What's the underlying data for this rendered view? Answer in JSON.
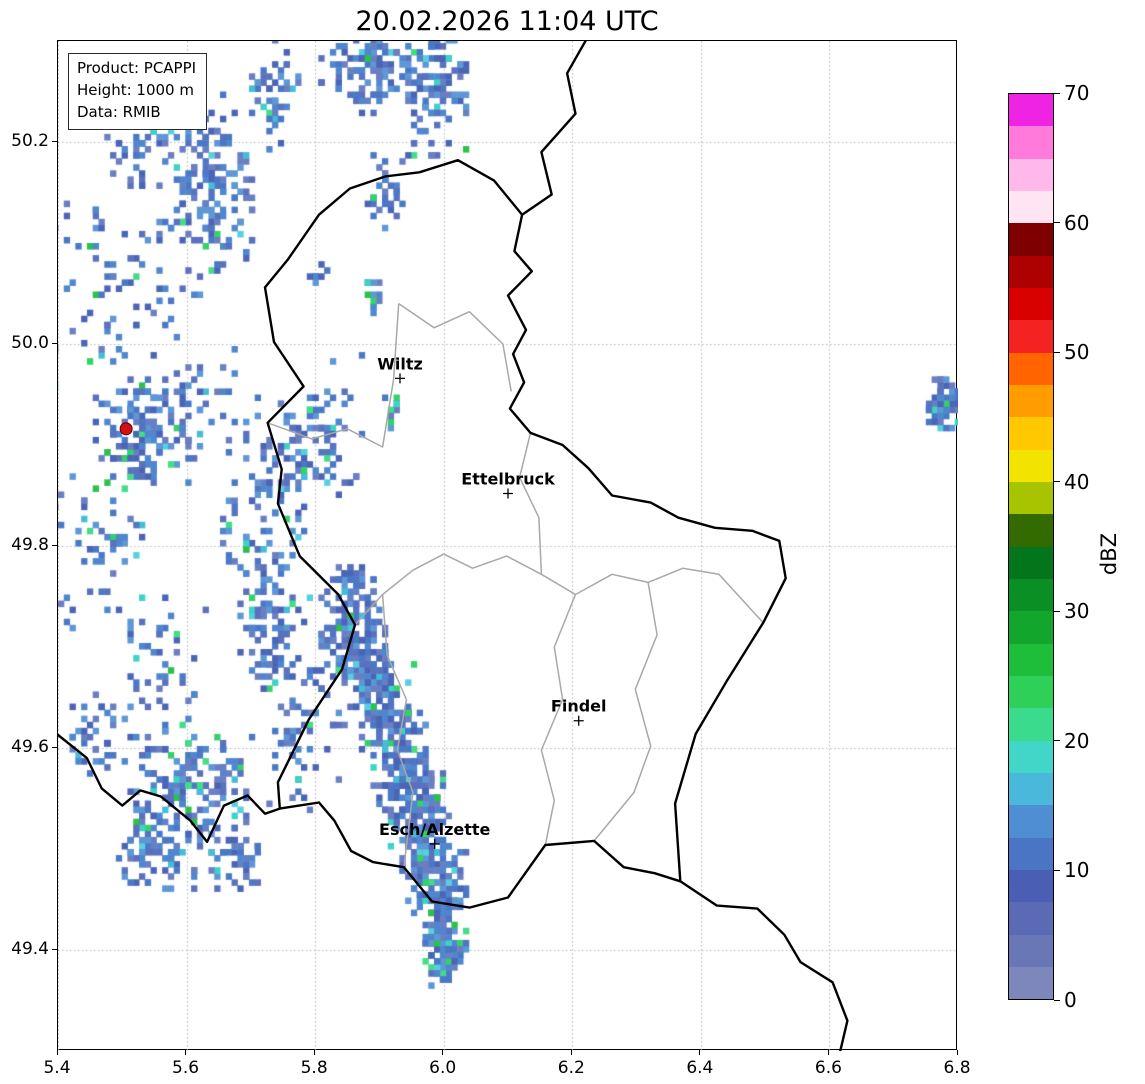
{
  "title": "20.02.2026 11:04 UTC",
  "info_box": {
    "product": "Product: PCAPPI",
    "height": "Height: 1000 m",
    "data": "Data: RMIB"
  },
  "axes": {
    "x_ticks": [
      "5.4",
      "5.6",
      "5.8",
      "6.0",
      "6.2",
      "6.4",
      "6.6",
      "6.8"
    ],
    "y_ticks": [
      "50.2",
      "50.0",
      "49.8",
      "49.6",
      "49.4"
    ],
    "lon_min": 5.4,
    "lon_max": 6.8,
    "lat_min": 49.3,
    "lat_max": 50.3,
    "grid": "dotted"
  },
  "colorbar": {
    "label": "dBZ",
    "tick_labels": [
      "70",
      "60",
      "50",
      "40",
      "30",
      "20",
      "10",
      "0"
    ],
    "min": 0,
    "max": 70,
    "segment_colors_bottom_to_top": [
      "#7d87bc",
      "#6a77b6",
      "#5a6ab4",
      "#4a5fb4",
      "#4a74c4",
      "#4f8ed2",
      "#49b8da",
      "#41d6c8",
      "#3bdb8e",
      "#2ed057",
      "#1fbe3a",
      "#12a62c",
      "#0a8f24",
      "#03751b",
      "#336b00",
      "#a8c400",
      "#f2e400",
      "#ffc800",
      "#ff9c00",
      "#ff6400",
      "#f52222",
      "#d90000",
      "#ad0000",
      "#7e0000",
      "#ffe4f4",
      "#ffb8ea",
      "#ff7ada",
      "#ef23e4"
    ]
  },
  "cities": [
    {
      "name": "Wiltz",
      "lon": 5.932,
      "lat": 49.966
    },
    {
      "name": "Ettelbruck",
      "lon": 6.1,
      "lat": 49.852
    },
    {
      "name": "Findel",
      "lon": 6.21,
      "lat": 49.627
    },
    {
      "name": "Esch/Alzette",
      "lon": 5.986,
      "lat": 49.505
    }
  ],
  "radar_site": {
    "lon": 5.506,
    "lat": 49.916,
    "color": "#d40f0f"
  },
  "map": {
    "national_borders": [
      [
        [
          6.122,
          50.128
        ],
        [
          6.11,
          50.092
        ],
        [
          6.137,
          50.072
        ],
        [
          6.1,
          50.048
        ],
        [
          6.128,
          50.014
        ],
        [
          6.108,
          49.99
        ],
        [
          6.125,
          49.962
        ],
        [
          6.103,
          49.936
        ],
        [
          6.135,
          49.912
        ],
        [
          6.185,
          49.9
        ],
        [
          6.225,
          49.877
        ],
        [
          6.262,
          49.85
        ],
        [
          6.322,
          49.843
        ],
        [
          6.365,
          49.828
        ],
        [
          6.422,
          49.818
        ],
        [
          6.48,
          49.815
        ],
        [
          6.522,
          49.805
        ],
        [
          6.532,
          49.768
        ],
        [
          6.497,
          49.724
        ],
        [
          6.44,
          49.666
        ],
        [
          6.392,
          49.614
        ],
        [
          6.36,
          49.545
        ],
        [
          6.368,
          49.468
        ],
        [
          6.328,
          49.476
        ],
        [
          6.28,
          49.482
        ],
        [
          6.234,
          49.508
        ],
        [
          6.158,
          49.504
        ],
        [
          6.1,
          49.452
        ],
        [
          6.04,
          49.442
        ],
        [
          5.982,
          49.448
        ],
        [
          5.938,
          49.482
        ],
        [
          5.89,
          49.487
        ],
        [
          5.856,
          49.498
        ],
        [
          5.83,
          49.528
        ],
        [
          5.806,
          49.546
        ],
        [
          5.745,
          49.54
        ],
        [
          5.742,
          49.566
        ],
        [
          5.79,
          49.628
        ],
        [
          5.842,
          49.678
        ],
        [
          5.862,
          49.722
        ],
        [
          5.836,
          49.752
        ],
        [
          5.776,
          49.79
        ],
        [
          5.742,
          49.842
        ],
        [
          5.748,
          49.876
        ],
        [
          5.726,
          49.922
        ],
        [
          5.782,
          49.958
        ],
        [
          5.736,
          50.002
        ],
        [
          5.722,
          50.056
        ],
        [
          5.758,
          50.084
        ],
        [
          5.806,
          50.128
        ],
        [
          5.854,
          50.154
        ],
        [
          5.91,
          50.166
        ],
        [
          5.962,
          50.17
        ],
        [
          6.022,
          50.182
        ],
        [
          6.078,
          50.162
        ],
        [
          6.122,
          50.128
        ]
      ],
      [
        [
          6.122,
          50.128
        ],
        [
          6.168,
          50.148
        ],
        [
          6.152,
          50.19
        ],
        [
          6.205,
          50.228
        ],
        [
          6.192,
          50.268
        ],
        [
          6.225,
          50.305
        ]
      ],
      [
        [
          6.368,
          49.468
        ],
        [
          6.425,
          49.444
        ],
        [
          6.488,
          49.441
        ],
        [
          6.53,
          49.415
        ],
        [
          6.555,
          49.388
        ],
        [
          6.605,
          49.368
        ],
        [
          6.628,
          49.33
        ],
        [
          6.615,
          49.295
        ]
      ],
      [
        [
          5.398,
          49.614
        ],
        [
          5.445,
          49.59
        ],
        [
          5.468,
          49.56
        ],
        [
          5.5,
          49.543
        ],
        [
          5.528,
          49.558
        ],
        [
          5.56,
          49.552
        ],
        [
          5.606,
          49.528
        ],
        [
          5.632,
          49.507
        ],
        [
          5.658,
          49.543
        ],
        [
          5.695,
          49.553
        ],
        [
          5.722,
          49.535
        ],
        [
          5.745,
          49.54
        ]
      ]
    ],
    "internal_borders": [
      [
        [
          5.93,
          50.04
        ],
        [
          5.985,
          50.016
        ],
        [
          6.04,
          50.032
        ],
        [
          6.092,
          50.0
        ],
        [
          6.105,
          49.953
        ]
      ],
      [
        [
          5.726,
          49.922
        ],
        [
          5.795,
          49.906
        ],
        [
          5.85,
          49.916
        ],
        [
          5.905,
          49.898
        ],
        [
          5.922,
          49.965
        ],
        [
          5.93,
          50.04
        ]
      ],
      [
        [
          5.862,
          49.722
        ],
        [
          5.905,
          49.752
        ],
        [
          5.952,
          49.776
        ],
        [
          6.0,
          49.792
        ],
        [
          6.045,
          49.778
        ],
        [
          6.098,
          49.79
        ],
        [
          6.152,
          49.772
        ],
        [
          6.205,
          49.752
        ],
        [
          6.262,
          49.772
        ],
        [
          6.318,
          49.764
        ],
        [
          6.372,
          49.778
        ],
        [
          6.428,
          49.772
        ],
        [
          6.497,
          49.724
        ]
      ],
      [
        [
          6.152,
          49.772
        ],
        [
          6.148,
          49.828
        ],
        [
          6.118,
          49.868
        ],
        [
          6.135,
          49.912
        ]
      ],
      [
        [
          6.205,
          49.752
        ],
        [
          6.172,
          49.7
        ],
        [
          6.185,
          49.648
        ],
        [
          6.152,
          49.598
        ],
        [
          6.172,
          49.548
        ],
        [
          6.158,
          49.504
        ]
      ],
      [
        [
          6.318,
          49.764
        ],
        [
          6.332,
          49.712
        ],
        [
          6.298,
          49.658
        ],
        [
          6.322,
          49.602
        ],
        [
          6.296,
          49.556
        ],
        [
          6.234,
          49.508
        ]
      ],
      [
        [
          5.905,
          49.752
        ],
        [
          5.912,
          49.692
        ],
        [
          5.942,
          49.648
        ],
        [
          5.928,
          49.598
        ],
        [
          5.952,
          49.556
        ],
        [
          5.938,
          49.482
        ]
      ]
    ]
  },
  "echoes": {
    "cell": {
      "dlon": 0.009,
      "dlat": 0.006
    },
    "palette": {
      "dark_blue": [
        "#5a71bd",
        "#4a64b6",
        "#6a7fc2"
      ],
      "mid_blue": [
        "#4f87cf",
        "#4a78c6",
        "#5e97d6"
      ],
      "cyan": [
        "#45bcd8",
        "#3ed3c4",
        "#58cfe0"
      ],
      "green": [
        "#35d169",
        "#2cc148",
        "#43dd85"
      ]
    },
    "clusters": [
      [
        5.88,
        50.283,
        0.05,
        0.028,
        120,
        0.18
      ],
      [
        5.985,
        50.262,
        0.028,
        0.042,
        110,
        0.15
      ],
      [
        5.64,
        50.165,
        0.042,
        0.05,
        150,
        0.12
      ],
      [
        5.585,
        50.24,
        0.03,
        0.028,
        40,
        0.1
      ],
      [
        5.73,
        50.255,
        0.022,
        0.035,
        45,
        0.1
      ],
      [
        5.48,
        50.07,
        0.09,
        0.07,
        90,
        0.08
      ],
      [
        5.51,
        50.2,
        0.03,
        0.03,
        35,
        0.1
      ],
      [
        5.52,
        49.915,
        0.04,
        0.032,
        120,
        0.1
      ],
      [
        5.62,
        49.935,
        0.05,
        0.04,
        55,
        0.08
      ],
      [
        5.45,
        49.8,
        0.055,
        0.06,
        60,
        0.06
      ],
      [
        5.72,
        49.82,
        0.04,
        0.07,
        110,
        0.08
      ],
      [
        5.83,
        49.92,
        0.028,
        0.045,
        45,
        0.1
      ],
      [
        5.73,
        49.72,
        0.026,
        0.035,
        55,
        0.1
      ],
      [
        5.78,
        49.63,
        0.045,
        0.055,
        65,
        0.06
      ],
      [
        5.845,
        49.735,
        0.028,
        0.032,
        115,
        0.2
      ],
      [
        5.875,
        49.685,
        0.024,
        0.028,
        105,
        0.25
      ],
      [
        5.905,
        49.64,
        0.026,
        0.032,
        125,
        0.28
      ],
      [
        5.935,
        49.575,
        0.028,
        0.038,
        140,
        0.25
      ],
      [
        5.965,
        49.51,
        0.026,
        0.042,
        150,
        0.3
      ],
      [
        5.995,
        49.445,
        0.02,
        0.038,
        130,
        0.33
      ],
      [
        6.0,
        49.398,
        0.016,
        0.02,
        55,
        0.28
      ],
      [
        5.6,
        49.565,
        0.05,
        0.032,
        150,
        0.18
      ],
      [
        5.55,
        49.498,
        0.038,
        0.026,
        70,
        0.14
      ],
      [
        5.672,
        49.498,
        0.028,
        0.022,
        50,
        0.1
      ],
      [
        5.46,
        49.62,
        0.038,
        0.026,
        40,
        0.08
      ],
      [
        6.775,
        49.945,
        0.02,
        0.016,
        60,
        0.04
      ],
      [
        5.885,
        50.05,
        0.007,
        0.013,
        12,
        0.85
      ],
      [
        5.915,
        49.94,
        0.006,
        0.011,
        10,
        0.85
      ],
      [
        5.8,
        50.068,
        0.009,
        0.009,
        8,
        0.5
      ],
      [
        5.905,
        50.155,
        0.018,
        0.022,
        30,
        0.12
      ],
      [
        5.555,
        49.68,
        0.04,
        0.045,
        45,
        0.06
      ],
      [
        5.76,
        49.905,
        0.025,
        0.03,
        40,
        0.08
      ]
    ]
  }
}
